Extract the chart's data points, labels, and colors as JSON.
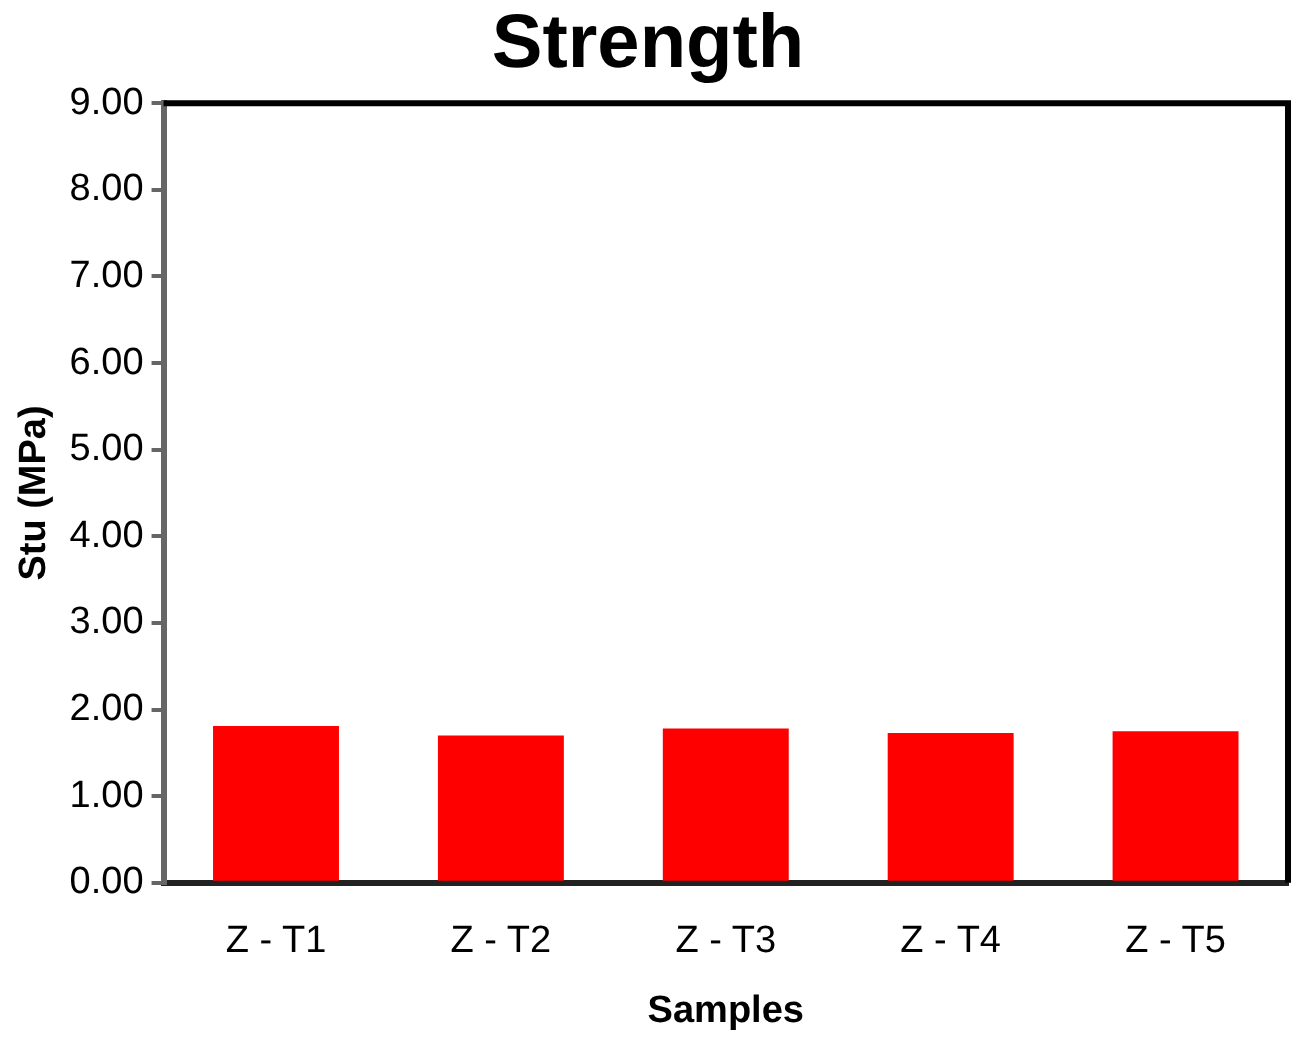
{
  "chart_data": {
    "type": "bar",
    "title": "Strength",
    "xlabel": "Samples",
    "ylabel": "Stu (MPa)",
    "categories": [
      "Z - T1",
      "Z - T2",
      "Z - T3",
      "Z - T4",
      "Z - T5"
    ],
    "values": [
      1.81,
      1.7,
      1.78,
      1.73,
      1.75
    ],
    "color": "#ff0000",
    "ylim": [
      0,
      9
    ],
    "yticks": [
      {
        "value": 0,
        "label": "0.00"
      },
      {
        "value": 1,
        "label": "1.00"
      },
      {
        "value": 2,
        "label": "2.00"
      },
      {
        "value": 3,
        "label": "3.00"
      },
      {
        "value": 4,
        "label": "4.00"
      },
      {
        "value": 5,
        "label": "5.00"
      },
      {
        "value": 6,
        "label": "6.00"
      },
      {
        "value": 7,
        "label": "7.00"
      },
      {
        "value": 8,
        "label": "8.00"
      },
      {
        "value": 9,
        "label": "9.00"
      }
    ],
    "grid": false
  }
}
